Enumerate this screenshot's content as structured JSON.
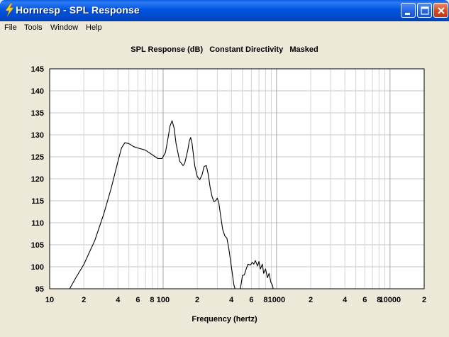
{
  "window": {
    "title": "Hornresp - SPL Response",
    "app_icon": "lightning-bolt-icon"
  },
  "menu": [
    "File",
    "Tools",
    "Window",
    "Help"
  ],
  "chart_data": {
    "type": "line",
    "title": "SPL Response (dB)   Constant Directivity   Masked",
    "xlabel": "Frequency (hertz)",
    "ylabel": "",
    "x_scale": "log",
    "xlim": [
      10,
      20000
    ],
    "ylim": [
      95,
      145
    ],
    "yticks": [
      95,
      100,
      105,
      110,
      115,
      120,
      125,
      130,
      135,
      140,
      145
    ],
    "xtick_labels": [
      {
        "v": 10,
        "t": "10"
      },
      {
        "v": 20,
        "t": "2"
      },
      {
        "v": 40,
        "t": "4"
      },
      {
        "v": 60,
        "t": "6"
      },
      {
        "v": 80,
        "t": "8"
      },
      {
        "v": 100,
        "t": "100"
      },
      {
        "v": 200,
        "t": "2"
      },
      {
        "v": 400,
        "t": "4"
      },
      {
        "v": 600,
        "t": "6"
      },
      {
        "v": 800,
        "t": "8"
      },
      {
        "v": 1000,
        "t": "1000"
      },
      {
        "v": 2000,
        "t": "2"
      },
      {
        "v": 4000,
        "t": "4"
      },
      {
        "v": 6000,
        "t": "6"
      },
      {
        "v": 8000,
        "t": "8"
      },
      {
        "v": 10000,
        "t": "10000"
      },
      {
        "v": 20000,
        "t": "2"
      }
    ],
    "grid": true,
    "line_color": "#000000",
    "series": [
      {
        "segments": [
          [
            [
              15,
              95
            ],
            [
              17,
              97.5
            ],
            [
              20,
              100.5
            ],
            [
              25,
              106
            ],
            [
              30,
              112
            ],
            [
              35,
              118
            ],
            [
              40,
              124
            ],
            [
              43,
              127
            ],
            [
              46,
              128.2
            ],
            [
              50,
              128
            ],
            [
              55,
              127.3
            ],
            [
              60,
              127
            ],
            [
              70,
              126.5
            ],
            [
              80,
              125.5
            ],
            [
              90,
              124.6
            ],
            [
              98,
              124.6
            ],
            [
              105,
              126
            ],
            [
              110,
              129
            ],
            [
              115,
              132
            ],
            [
              120,
              133.2
            ],
            [
              125,
              131.5
            ],
            [
              130,
              128
            ],
            [
              140,
              124
            ],
            [
              150,
              123
            ],
            [
              155,
              123.5
            ],
            [
              165,
              126.5
            ],
            [
              170,
              128.5
            ],
            [
              175,
              129.4
            ],
            [
              180,
              128
            ],
            [
              190,
              123
            ],
            [
              200,
              120.5
            ],
            [
              210,
              119.8
            ],
            [
              220,
              120.8
            ],
            [
              230,
              122.8
            ],
            [
              240,
              123
            ],
            [
              250,
              121
            ],
            [
              260,
              118
            ],
            [
              270,
              116
            ],
            [
              280,
              114.8
            ],
            [
              290,
              115
            ],
            [
              300,
              115.6
            ],
            [
              310,
              114.5
            ],
            [
              320,
              112
            ],
            [
              335,
              108.5
            ],
            [
              350,
              107
            ],
            [
              365,
              106.5
            ],
            [
              380,
              104
            ],
            [
              400,
              100
            ],
            [
              420,
              96
            ],
            [
              430,
              95
            ]
          ],
          [
            [
              480,
              95
            ],
            [
              500,
              98
            ],
            [
              520,
              98.2
            ],
            [
              540,
              99.5
            ],
            [
              560,
              100.6
            ],
            [
              590,
              100.4
            ],
            [
              610,
              101
            ],
            [
              630,
              100.6
            ],
            [
              650,
              101.4
            ],
            [
              680,
              100.2
            ],
            [
              700,
              101.2
            ],
            [
              720,
              99.5
            ],
            [
              750,
              100.6
            ],
            [
              770,
              98.5
            ],
            [
              800,
              99.5
            ],
            [
              830,
              97.5
            ],
            [
              860,
              98.5
            ],
            [
              890,
              96.5
            ],
            [
              920,
              95.8
            ],
            [
              935,
              95
            ]
          ]
        ]
      }
    ]
  }
}
